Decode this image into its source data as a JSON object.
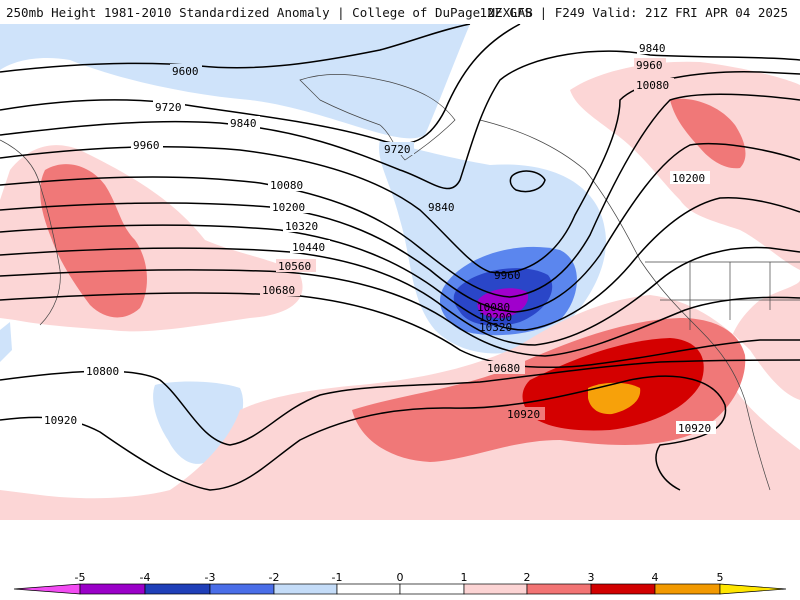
{
  "header": {
    "title_left": "250mb Height 1981-2010 Standardized Anomaly | College of DuPage NEXLAB",
    "title_right": "12Z GFS | F249 Valid: 21Z FRI APR 04 2025"
  },
  "contour_labels": [
    "9600",
    "9720",
    "9840",
    "9960",
    "10080",
    "10200",
    "10320",
    "10440",
    "10560",
    "10680",
    "10800",
    "10920"
  ],
  "low_center_labels": [
    "9960",
    "10080",
    "10200",
    "10320"
  ],
  "colorbar": {
    "ticks": [
      "-5",
      "-4",
      "-3",
      "-2",
      "-1",
      "0",
      "1",
      "2",
      "3",
      "4",
      "5"
    ],
    "colors": [
      "#f24cf2",
      "#9a00c8",
      "#1f3fb8",
      "#4a6ee8",
      "#c4dcf8",
      "#ffffff",
      "#fcd4d4",
      "#f27474",
      "#d10000",
      "#f29900",
      "#ffe600"
    ]
  },
  "colors": {
    "neg_light": "#cfe3fa",
    "neg_mid": "#5b86ee",
    "neg_strong": "#2a46c8",
    "neg_extreme": "#a000cc",
    "pos_light": "#fcd6d6",
    "pos_mid": "#f07878",
    "pos_strong": "#d40000",
    "pos_extreme": "#f7a10a"
  }
}
